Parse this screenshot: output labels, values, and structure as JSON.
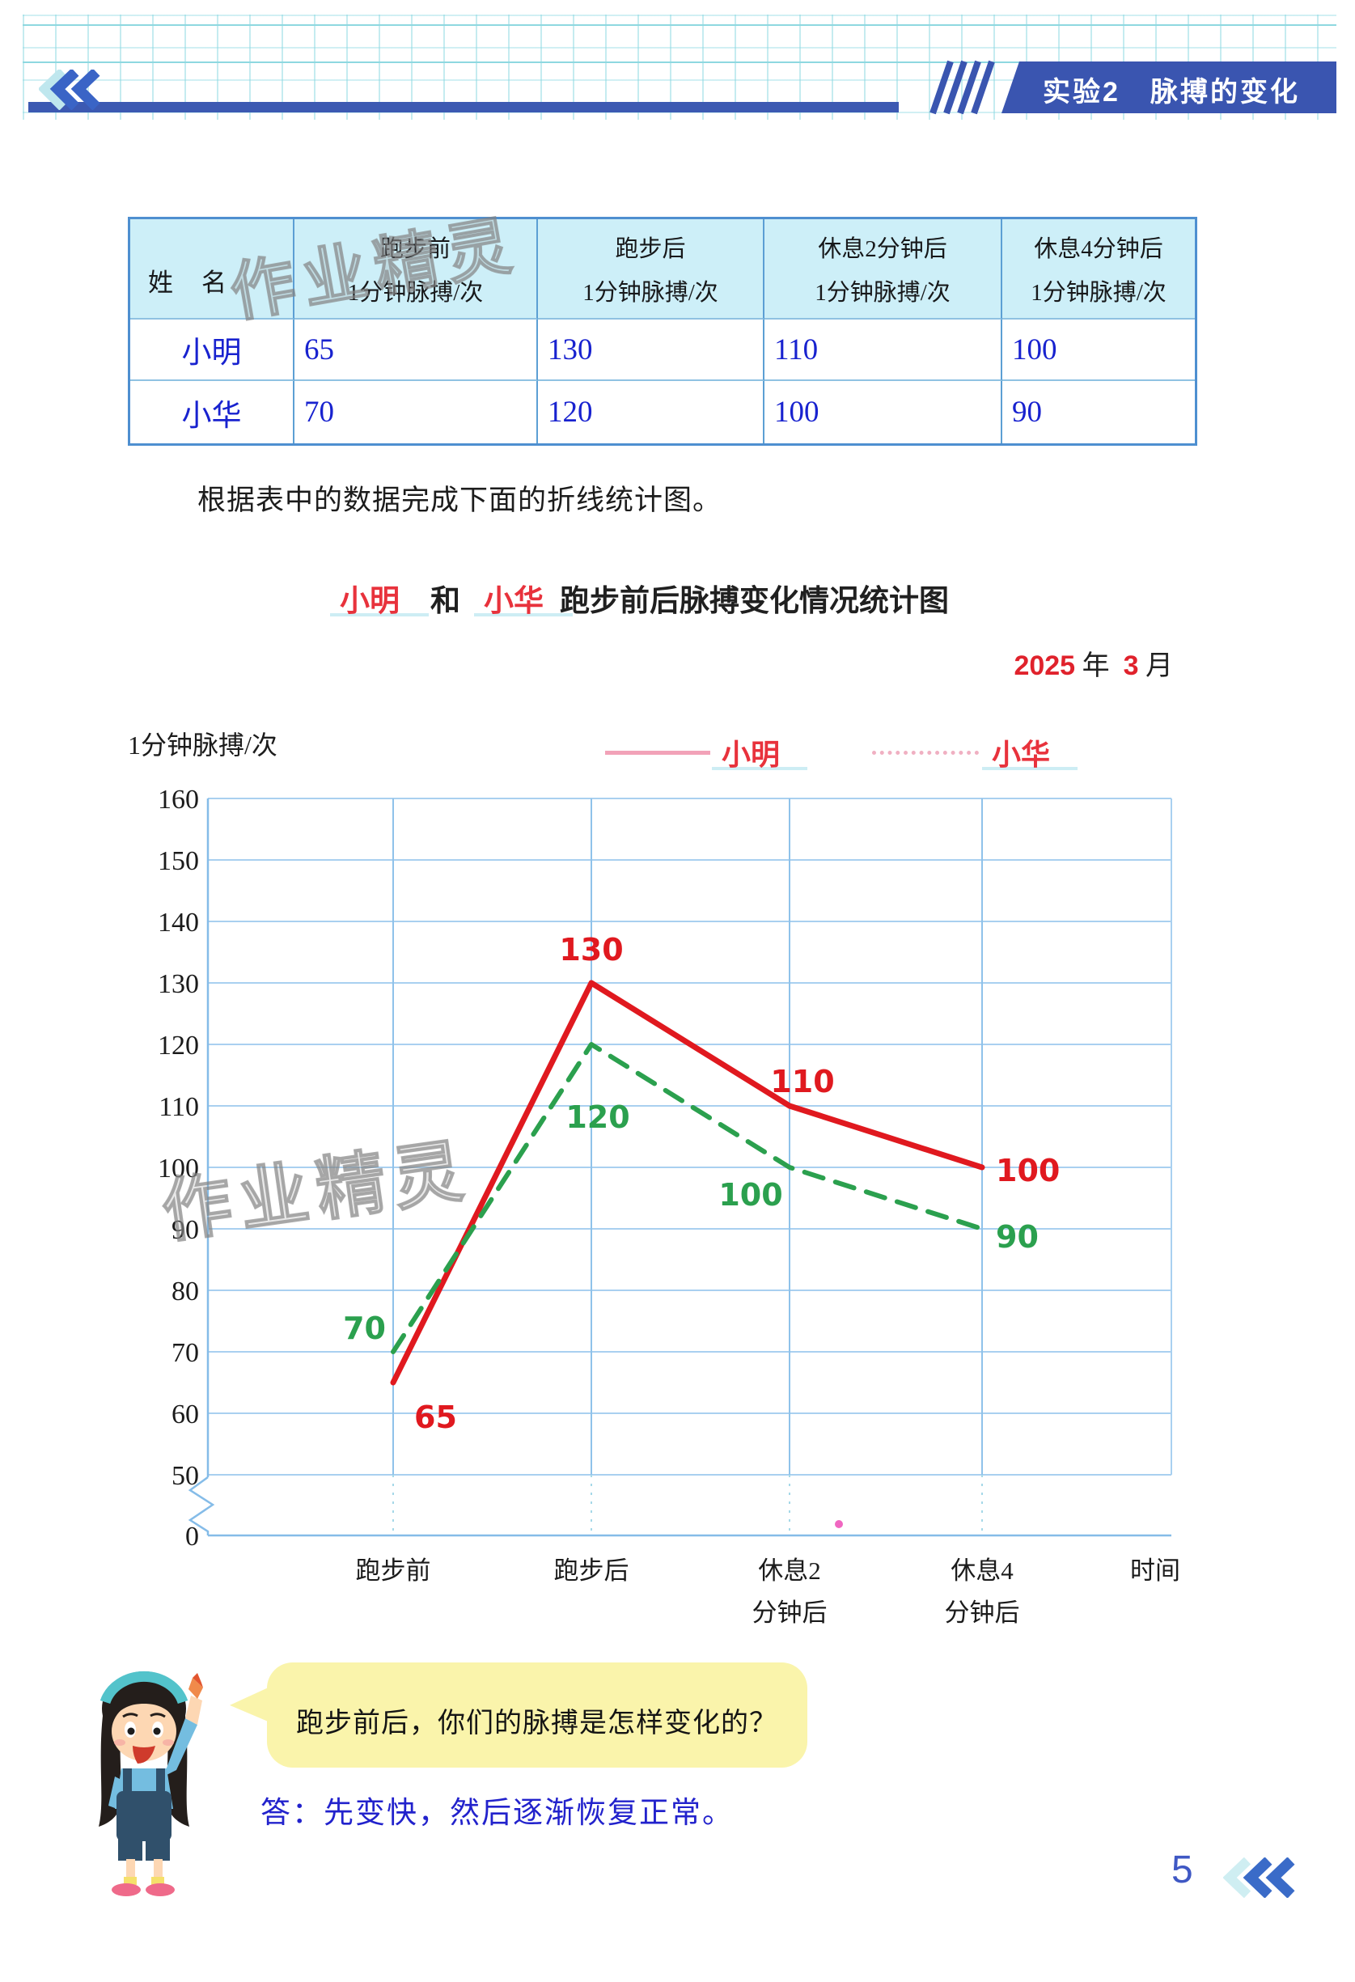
{
  "header": {
    "banner_title": "实验2　脉搏的变化"
  },
  "table": {
    "name_header": "姓　名",
    "columns": [
      {
        "line1": "跑步前",
        "line2": "1分钟脉搏/次"
      },
      {
        "line1": "跑步后",
        "line2": "1分钟脉搏/次"
      },
      {
        "line1": "休息2分钟后",
        "line2": "1分钟脉搏/次"
      },
      {
        "line1": "休息4分钟后",
        "line2": "1分钟脉搏/次"
      }
    ],
    "rows": [
      {
        "name": "小明",
        "values": [
          "65",
          "130",
          "110",
          "100"
        ]
      },
      {
        "name": "小华",
        "values": [
          "70",
          "120",
          "100",
          "90"
        ]
      }
    ]
  },
  "instruction": "根据表中的数据完成下面的折线统计图。",
  "chart": {
    "title_name1": "小明",
    "title_and": "和",
    "title_name2": "小华",
    "title_rest": "跑步前后脉搏变化情况统计图",
    "date": {
      "year": "2025",
      "year_label": "年",
      "month": "3",
      "month_label": "月"
    },
    "y_unit": "1分钟脉搏/次",
    "legend": [
      {
        "label": "小明"
      },
      {
        "label": "小华"
      }
    ],
    "x_label": "时间",
    "x_tick_lines": [
      [
        "跑步前"
      ],
      [
        "跑步后"
      ],
      [
        "休息2",
        "分钟后"
      ],
      [
        "休息4",
        "分钟后"
      ]
    ]
  },
  "chart_data": {
    "type": "line",
    "title": "小明 和 小华 跑步前后脉搏变化情况统计图",
    "date": "2025年3月",
    "categories": [
      "跑步前",
      "跑步后",
      "休息2分钟后",
      "休息4分钟后"
    ],
    "series": [
      {
        "name": "小明",
        "color": "#e0191f",
        "style": "solid",
        "values": [
          65,
          130,
          110,
          100
        ]
      },
      {
        "name": "小华",
        "color": "#2ba04e",
        "style": "dashed",
        "values": [
          70,
          120,
          100,
          90
        ]
      }
    ],
    "ylabel": "1分钟脉搏/次",
    "xlabel": "时间",
    "y_ticks": [
      0,
      50,
      60,
      70,
      80,
      90,
      100,
      110,
      120,
      130,
      140,
      150,
      160
    ],
    "ylim": [
      0,
      160
    ],
    "axis_break": true,
    "grid": true,
    "legend_position": "top"
  },
  "watermark": "作业精灵",
  "dialog": {
    "question": "跑步前后，你们的脉搏是怎样变化的？",
    "answer": "答：先变快，然后逐渐恢复正常。"
  },
  "footer": {
    "page_number": "5"
  }
}
